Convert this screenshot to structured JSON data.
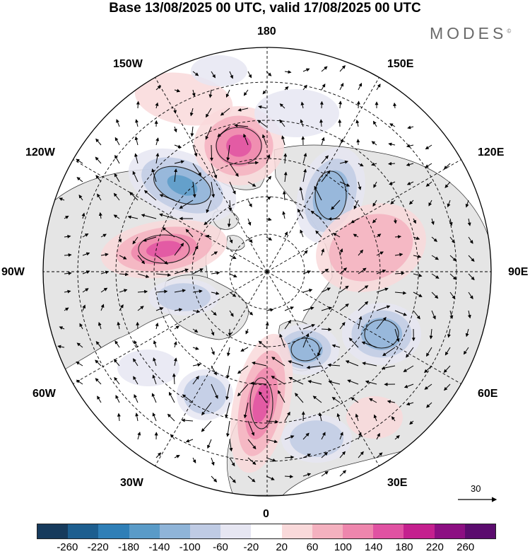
{
  "title": "Base 13/08/2025 00 UTC, valid 17/08/2025 00 UTC",
  "brand": "MODES",
  "brand_mark": "©",
  "map": {
    "projection": "north polar stereographic",
    "labels": {
      "lon_180": "180",
      "lon_150e": "150E",
      "lon_120e": "120E",
      "lon_90e": "90E",
      "lon_60e": "60E",
      "lon_30e": "30E",
      "lon_0": "0",
      "lon_30w": "30W",
      "lon_60w": "60W",
      "lon_90w": "90W",
      "lon_120w": "120W",
      "lon_150w": "150W"
    },
    "land_color": "#e5e5e5",
    "contour_color": "#222222",
    "graticule": "dashed"
  },
  "reference_vector": {
    "value": "30"
  },
  "legend": {
    "colors": [
      "#163a5c",
      "#1d5e8f",
      "#2f7fb7",
      "#5a9bc8",
      "#8fb4d8",
      "#bfcbe4",
      "#e6e6f2",
      "#ffffff",
      "#f9d9da",
      "#f4b1bf",
      "#ee86ad",
      "#e052a2",
      "#c4208e",
      "#8c0f82",
      "#5b0c6e"
    ],
    "ticks": [
      "-260",
      "-220",
      "-180",
      "-140",
      "-100",
      "-60",
      "-20",
      "20",
      "60",
      "100",
      "140",
      "180",
      "220",
      "260"
    ]
  }
}
